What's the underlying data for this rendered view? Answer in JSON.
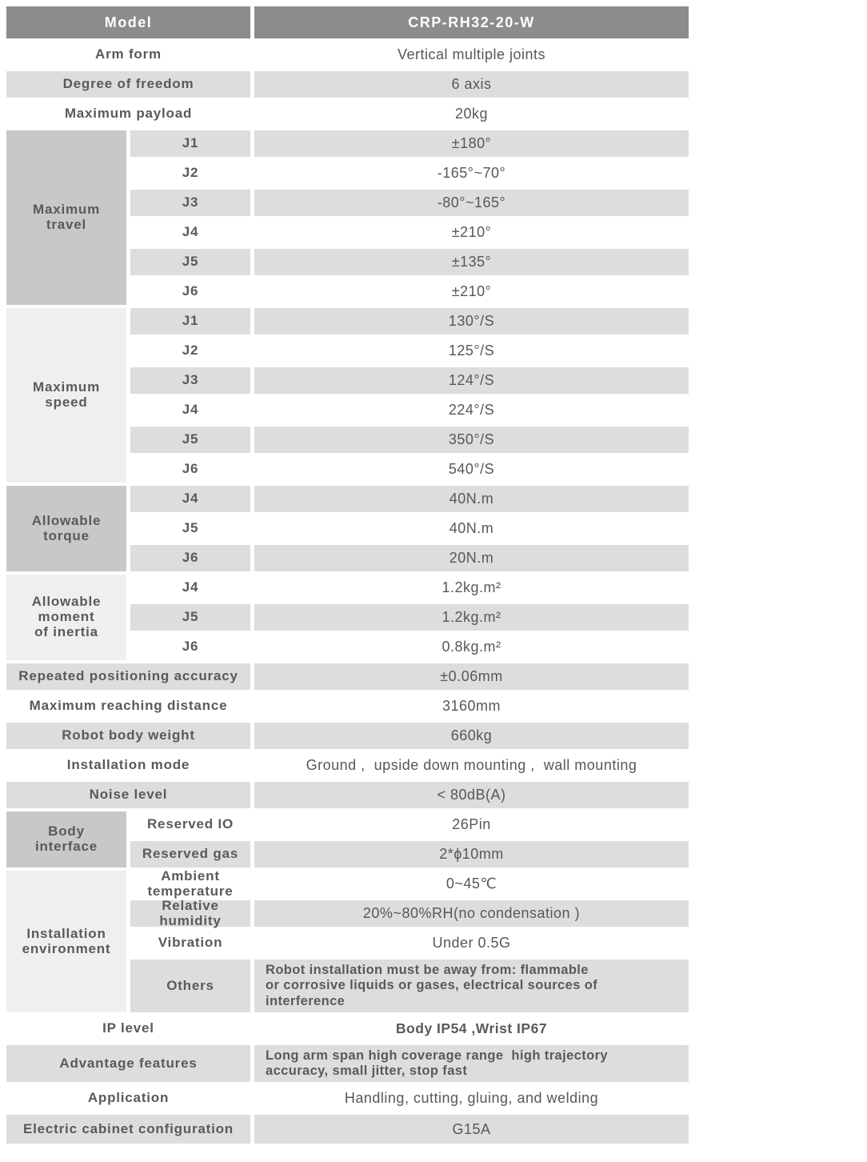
{
  "header": {
    "label": "Model",
    "value": "CRP-RH32-20-W"
  },
  "rows_top": [
    {
      "label": "Arm form",
      "value": "Vertical multiple joints"
    },
    {
      "label": "Degree of freedom",
      "value": "6 axis"
    },
    {
      "label": "Maximum payload",
      "value": "20kg"
    }
  ],
  "groups": [
    {
      "label": "Maximum\ntravel",
      "rows": [
        {
          "j": "J1",
          "v": "±180°"
        },
        {
          "j": "J2",
          "v": "-165°~70°"
        },
        {
          "j": "J3",
          "v": "-80°~165°"
        },
        {
          "j": "J4",
          "v": "±210°"
        },
        {
          "j": "J5",
          "v": "±135°"
        },
        {
          "j": "J6",
          "v": "±210°"
        }
      ]
    },
    {
      "label": "Maximum\nspeed",
      "rows": [
        {
          "j": "J1",
          "v": "130°/S"
        },
        {
          "j": "J2",
          "v": "125°/S"
        },
        {
          "j": "J3",
          "v": "124°/S"
        },
        {
          "j": "J4",
          "v": "224°/S"
        },
        {
          "j": "J5",
          "v": "350°/S"
        },
        {
          "j": "J6",
          "v": "540°/S"
        }
      ]
    },
    {
      "label": "Allowable\ntorque",
      "rows": [
        {
          "j": "J4",
          "v": "40N.m"
        },
        {
          "j": "J5",
          "v": "40N.m"
        },
        {
          "j": "J6",
          "v": "20N.m"
        }
      ]
    },
    {
      "label": "Allowable\nmoment\nof inertia",
      "rows": [
        {
          "j": "J4",
          "v": "1.2kg.m²"
        },
        {
          "j": "J5",
          "v": "1.2kg.m²"
        },
        {
          "j": "J6",
          "v": "0.8kg.m²"
        }
      ]
    }
  ],
  "rows_mid": [
    {
      "label": "Repeated positioning accuracy",
      "value": "±0.06mm"
    },
    {
      "label": "Maximum reaching distance",
      "value": "3160mm"
    },
    {
      "label": "Robot body weight",
      "value": "660kg"
    },
    {
      "label": "Installation mode",
      "value": "Ground ,  upside down mounting ,  wall mounting"
    },
    {
      "label": "Noise level",
      "value": "< 80dB(A)"
    }
  ],
  "groups2": [
    {
      "label": "Body\ninterface",
      "rows": [
        {
          "sub": "Reserved IO",
          "v": "26Pin"
        },
        {
          "sub": "Reserved gas",
          "v": "2*ϕ10mm"
        }
      ]
    },
    {
      "label": "Installation\nenvironment",
      "rows": [
        {
          "sub": "Ambient\ntemperature",
          "v": "0~45℃"
        },
        {
          "sub": "Relative\nhumidity",
          "v": "20%~80%RH(no condensation )"
        },
        {
          "sub": "Vibration",
          "v": "Under 0.5G"
        },
        {
          "sub": "Others",
          "v": "Robot installation must be away from: flammable\nor corrosive liquids or gases, electrical sources of\ninterference"
        }
      ]
    }
  ],
  "rows_bottom": [
    {
      "label": "IP level",
      "value": "Body IP54 ,Wrist IP67"
    },
    {
      "label": "Advantage features",
      "value": "Long arm span high coverage range  high trajectory\naccuracy, small jitter, stop fast"
    },
    {
      "label": "Application",
      "value": "Handling, cutting, gluing, and welding"
    },
    {
      "label": "Electric cabinet configuration",
      "value": "G15A"
    }
  ]
}
